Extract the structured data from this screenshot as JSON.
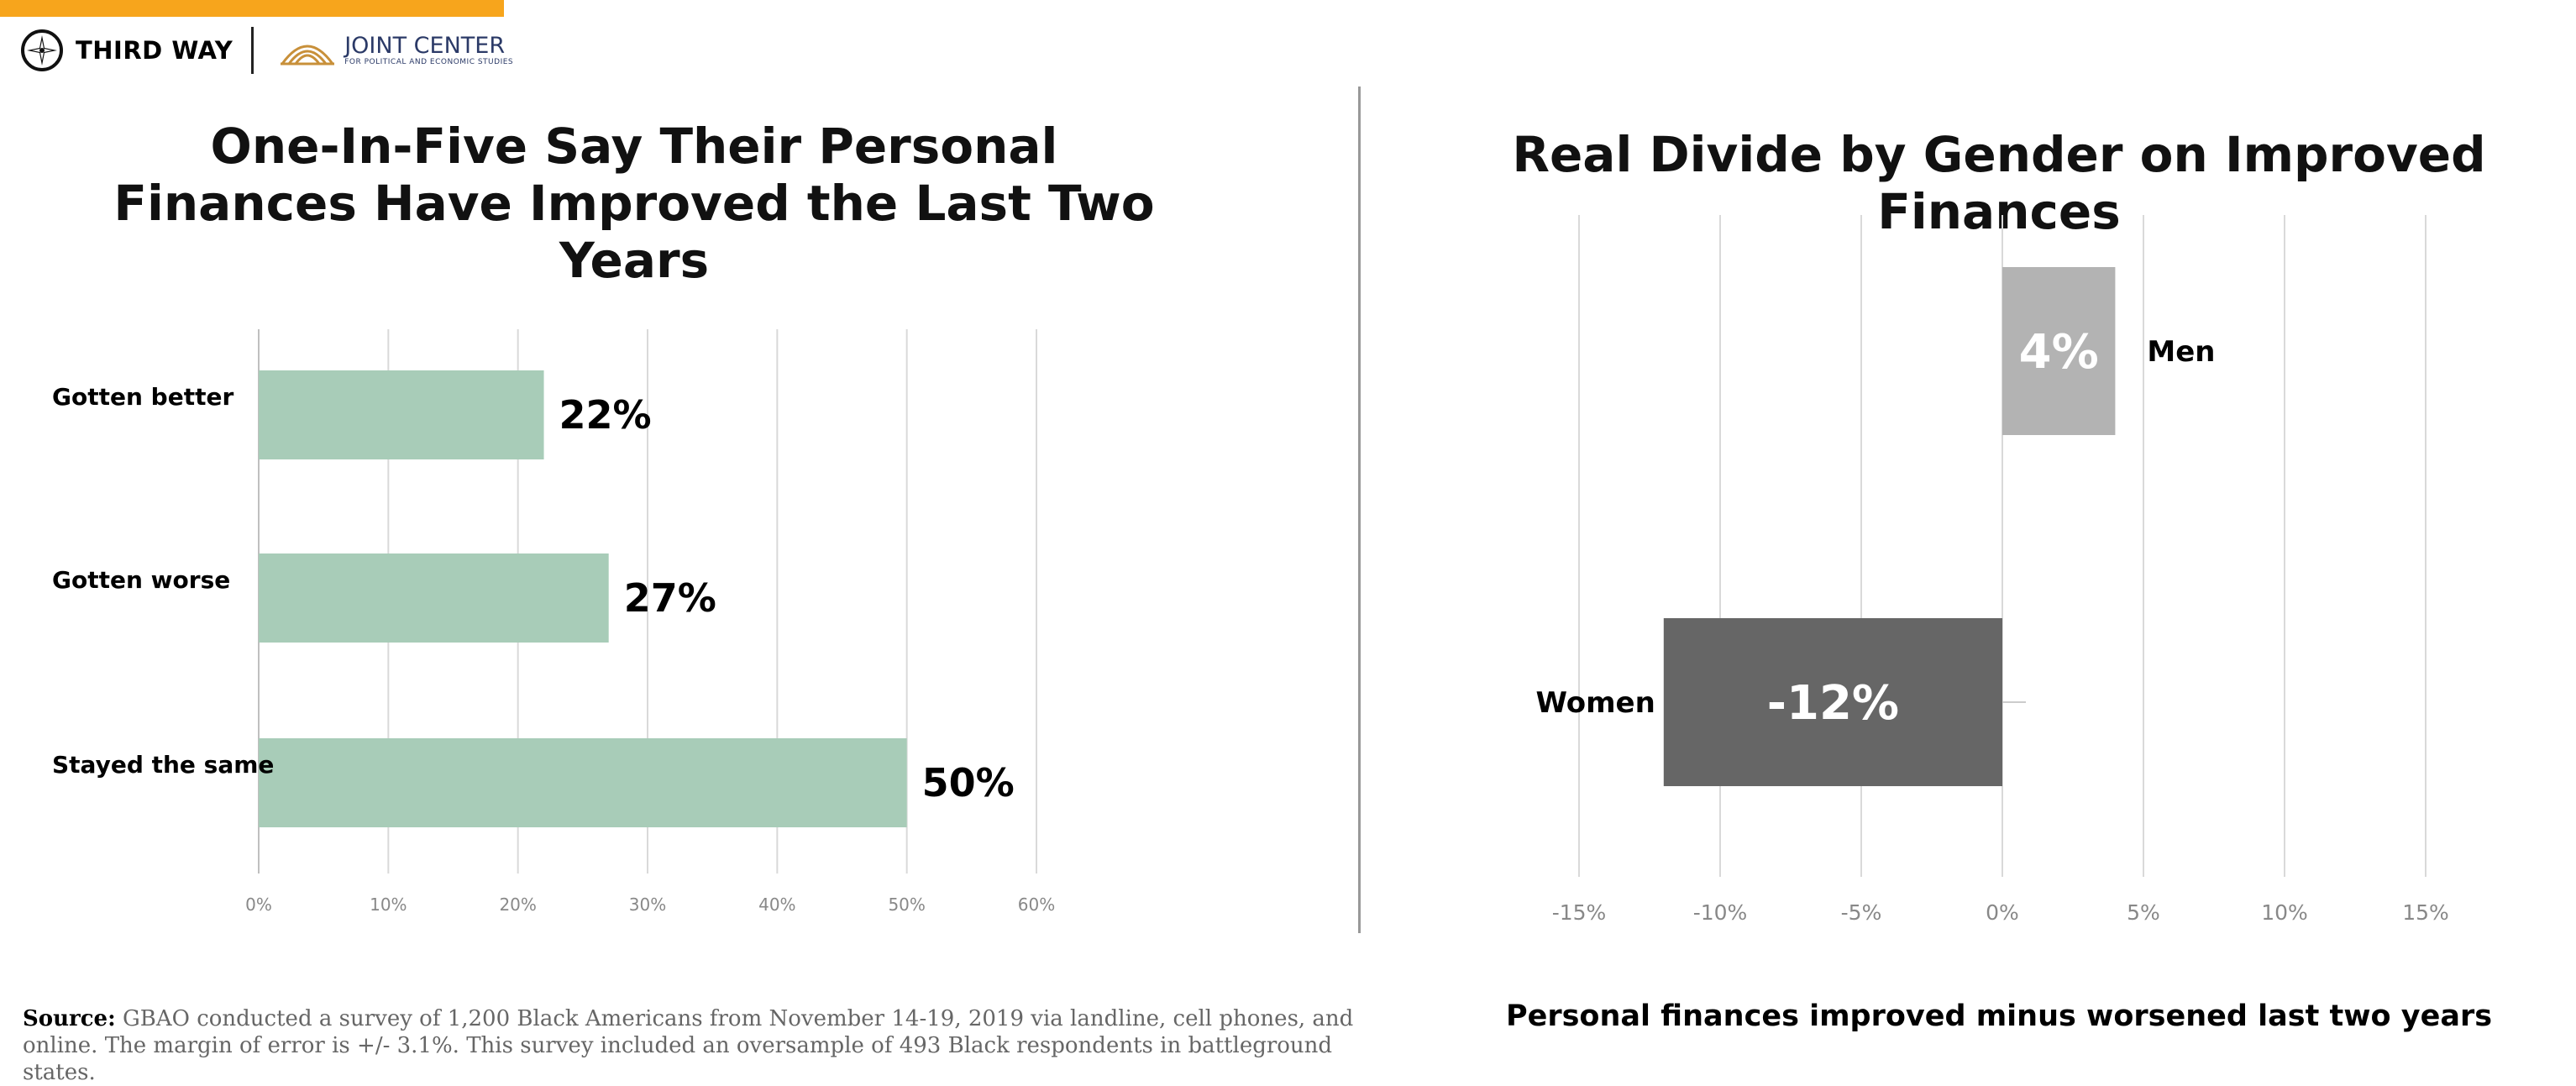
{
  "branding": {
    "org1": "THIRD WAY",
    "org2_title": "JOINT CENTER",
    "org2_subtitle": "FOR POLITICAL AND ECONOMIC STUDIES",
    "accent_color": "#f7a51c",
    "navy_color": "#2b3a67"
  },
  "chart_data": [
    {
      "type": "bar",
      "orientation": "horizontal",
      "title": "One-In-Five Say Their Personal Finances Have Improved the Last Two Years",
      "categories": [
        "Gotten better",
        "Gotten worse",
        "Stayed the same"
      ],
      "values": [
        22,
        27,
        50
      ],
      "data_labels": [
        "22%",
        "27%",
        "50%"
      ],
      "xlim": [
        0,
        60
      ],
      "ticks": [
        0,
        10,
        20,
        30,
        40,
        50,
        60
      ],
      "tick_labels": [
        "0%",
        "10%",
        "20%",
        "30%",
        "40%",
        "50%",
        "60%"
      ],
      "bar_color": "#a8ccb8",
      "grid": true
    },
    {
      "type": "bar",
      "orientation": "vertical",
      "title": "Real Divide by Gender on Improved Finances",
      "xlabel": "Personal finances improved minus worsened last two years",
      "categories": [
        "Men",
        "Women"
      ],
      "values": [
        4,
        -12
      ],
      "data_labels": [
        "4%",
        "-12%"
      ],
      "colors": [
        "#b3b3b3",
        "#666666"
      ],
      "xlim": [
        -15,
        15
      ],
      "ticks": [
        -15,
        -10,
        -5,
        0,
        5,
        10,
        15
      ],
      "tick_labels": [
        "-15%",
        "-10%",
        "-5%",
        "0%",
        "5%",
        "10%",
        "15%"
      ],
      "grid": true
    }
  ],
  "source": {
    "label": "Source:",
    "text": " GBAO conducted a survey of 1,200 Black Americans from November 14-19, 2019 via landline, cell phones, and online. The margin of error is +/- 3.1%. This survey included an oversample of 493 Black respondents in battleground states."
  }
}
